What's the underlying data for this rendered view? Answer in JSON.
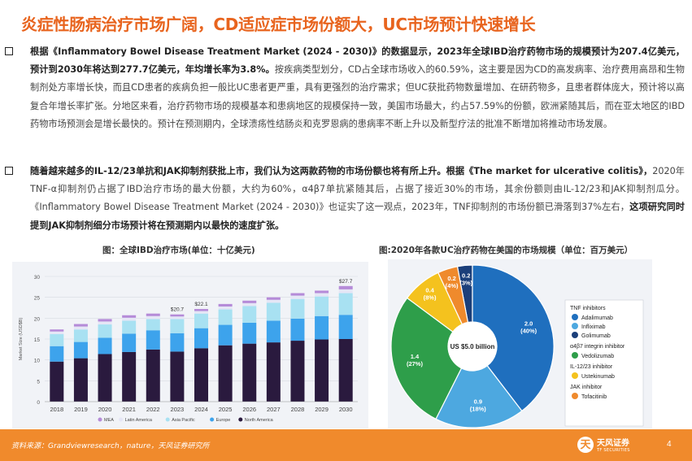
{
  "title": "炎症性肠病治疗市场广阔，CD适应症市场份额大，UC市场预计快速增长",
  "bullet1": {
    "p1_bold": "根据《Inflammatory Bowel Disease Treatment Market (2024 - 2030)》的数据显示，2023年全球IBD治疗药物市场的规模预计为207.4亿美元，预计到2030年将达到277.7亿美元，年均增长率为3.8%。",
    "p1_rest": "按疾病类型划分，CD占全球市场收入的60.59%，这主要是因为CD的高发病率、治疗费用高昂和生物制剂处方率增长快，而且CD患者的疾病负担一般比UC患者更严重，具有更强烈的治疗需求；但UC获批药物数量增加、在研药物多，且患者群体庞大，预计将以高复合年增长率扩张。分地区来看，治疗药物市场的规模基本和患病地区的规模保持一致，美国市场最大，约占57.59%的份额，欧洲紧随其后，而在亚太地区的IBD药物市场预测会是增长最快的。预计在预测期内，全球溃疡性结肠炎和克罗恩病的患病率不断上升以及新型疗法的批准不断增加将推动市场发展。"
  },
  "bullet2": {
    "p1_bold": "随着越来越多的IL-12/23单抗和JAK抑制剂获批上市，我们认为这两款药物的市场份额也将有所上升。根据《The market for ulcerative colitis》，",
    "p2": "2020年TNF-α抑制剂仍占据了IBD治疗市场的最大份额，大约为60%，α4β7单抗紧随其后，占据了接近30%的市场，其余份额则由IL-12/23和JAK抑制剂瓜分。《Inflammatory Bowel Disease Treatment Market (2024 - 2030)》也证实了这一观点，2023年，TNF抑制剂的市场份额已滑落到37%左右，",
    "p3_bold": "这项研究同时提到JAK抑制剂细分市场预计将在预测期内以最快的速度扩张。"
  },
  "caption_left": "图：全球IBD治疗市场(单位：十亿美元)",
  "caption_right": "图:2020年各款UC治疗药物在美国的市场规模（单位：百万美元）",
  "colors": {
    "accent": "#e8641e",
    "north_america": "#2a1a3e",
    "europe": "#3da3ec",
    "asia_pacific": "#a8e1f2",
    "latin_america": "#e5e6f6",
    "mea": "#b58bd8"
  },
  "chart_data": [
    {
      "type": "bar",
      "stacked": true,
      "title": "全球IBD治疗市场(单位：十亿美元)",
      "categories": [
        "2018",
        "2019",
        "2020",
        "2021",
        "2022",
        "2023",
        "2024",
        "2025",
        "2026",
        "2027",
        "2028",
        "2029",
        "2030"
      ],
      "ylabel": "Market Size (USD$B)",
      "ylim": [
        0,
        30
      ],
      "yticks": [
        "0",
        "5",
        "10",
        "15",
        "20",
        "25",
        "30"
      ],
      "series": [
        {
          "name": "North America",
          "values": [
            9.6,
            10.4,
            11.4,
            11.9,
            12.5,
            12.0,
            12.8,
            13.5,
            13.9,
            14.2,
            14.6,
            14.9,
            15.0
          ]
        },
        {
          "name": "Europe",
          "values": [
            3.7,
            3.9,
            3.9,
            4.4,
            4.6,
            4.4,
            4.8,
            4.9,
            5.0,
            5.2,
            5.3,
            5.6,
            5.8
          ]
        },
        {
          "name": "Asia Pacific",
          "values": [
            2.9,
            3.0,
            3.2,
            3.1,
            2.7,
            3.4,
            3.5,
            3.7,
            4.0,
            4.3,
            4.7,
            4.7,
            5.2
          ]
        },
        {
          "name": "Latin America",
          "values": [
            0.6,
            0.7,
            0.7,
            0.7,
            0.7,
            0.6,
            0.6,
            0.7,
            0.7,
            0.7,
            0.8,
            0.8,
            0.9
          ]
        },
        {
          "name": "MEA",
          "values": [
            0.5,
            0.6,
            0.6,
            0.6,
            0.6,
            0.5,
            0.5,
            0.6,
            0.6,
            0.6,
            0.6,
            0.6,
            0.8
          ]
        }
      ],
      "annotations": [
        {
          "category": "2023",
          "text": "$20.7"
        },
        {
          "category": "2024",
          "text": "$22.1"
        },
        {
          "category": "2030",
          "text": "$27.7"
        }
      ],
      "legend": [
        "MEA",
        "Latin America",
        "Asia Pacific",
        "Europe",
        "North America"
      ]
    },
    {
      "type": "pie",
      "donut": true,
      "title": "2020年各款UC治疗药物在美国的市场规模（单位：百万美元）",
      "center_label": "US $5.0 billion",
      "slices": [
        {
          "name": "Adalimumab",
          "value": 2.0,
          "label": "2.0",
          "pct": "(40%)",
          "color": "#1f6fbe"
        },
        {
          "name": "Infliximab",
          "value": 0.9,
          "label": "0.9",
          "pct": "(18%)",
          "color": "#4da8e0"
        },
        {
          "name": "Vedolizumab",
          "value": 1.4,
          "label": "1.4",
          "pct": "(27%)",
          "color": "#2e9e4a"
        },
        {
          "name": "Ustekinumab",
          "value": 0.4,
          "label": "0.4",
          "pct": "(8%)",
          "color": "#f4c21e"
        },
        {
          "name": "Tofacitinib",
          "value": 0.2,
          "label": "0.2",
          "pct": "(4%)",
          "color": "#ef8a2c"
        },
        {
          "name": "Golimumab",
          "value": 0.15,
          "label": "0.2",
          "pct": "(3%)",
          "color": "#1b3f7a"
        }
      ],
      "legend_groups": [
        {
          "title": "TNF inhibitors",
          "items": [
            "Adalimumab",
            "Infliximab",
            "Golimumab"
          ]
        },
        {
          "title": "α4β7 integrin inhibitor",
          "items": [
            "Vedolizumab"
          ]
        },
        {
          "title": "IL-12/23 inhibitor",
          "items": [
            "Ustekinumab"
          ]
        },
        {
          "title": "JAK inhibitor",
          "items": [
            "Tofacitinib"
          ]
        }
      ]
    }
  ],
  "footer": {
    "source": "资料来源：Grandviewresearch，nature，天风证券研究所",
    "logo_mark": "天",
    "logo_text": "天风证券",
    "logo_sub": "TF SECURITIES",
    "page": "4"
  }
}
